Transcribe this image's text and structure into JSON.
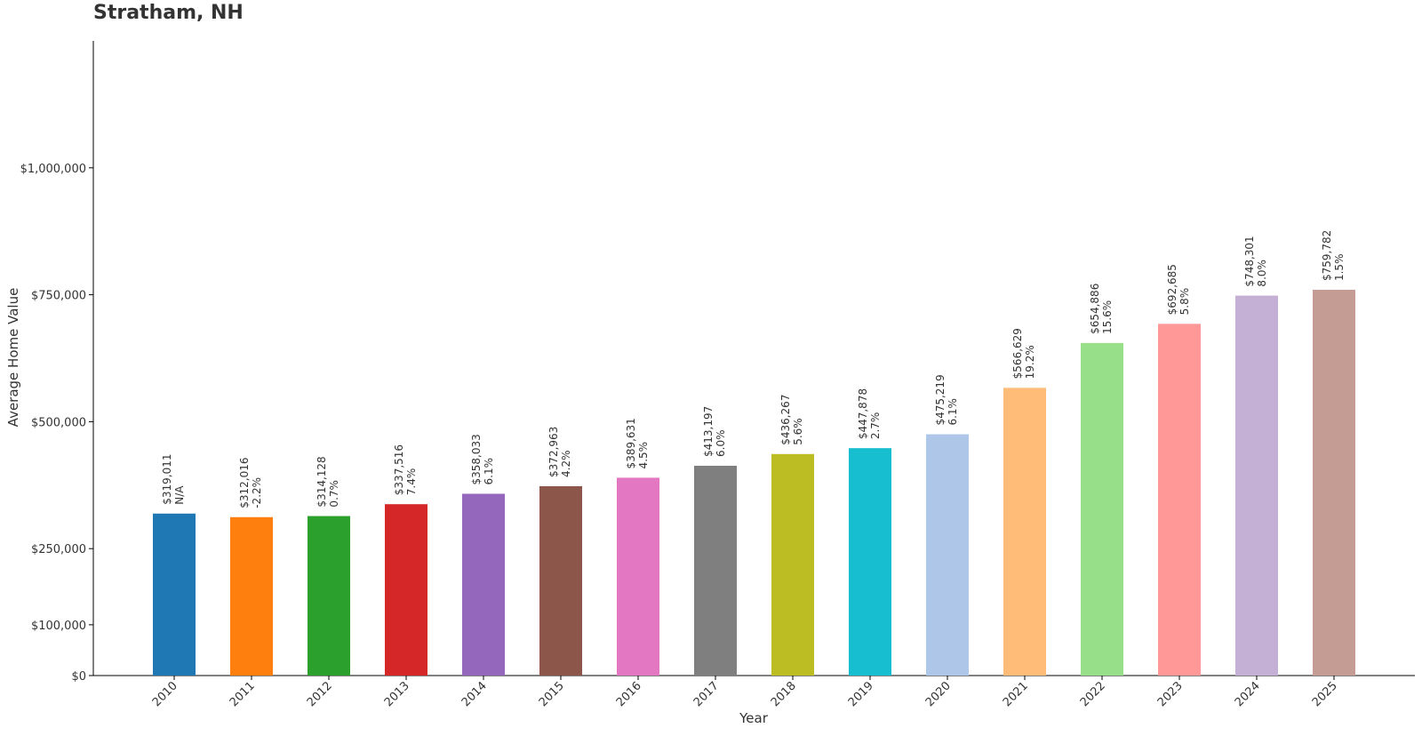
{
  "chart_data": {
    "type": "bar",
    "title": "Stratham, NH",
    "xlabel": "Year",
    "ylabel": "Average Home Value",
    "ylim": [
      0,
      1250000
    ],
    "y_ticks": [
      0,
      100000,
      250000,
      500000,
      750000,
      1000000
    ],
    "y_tick_labels": [
      "$0",
      "$100,000",
      "$250,000",
      "$500,000",
      "$750,000",
      "$1,000,000"
    ],
    "grid": false,
    "categories": [
      "2010",
      "2011",
      "2012",
      "2013",
      "2014",
      "2015",
      "2016",
      "2017",
      "2018",
      "2019",
      "2020",
      "2021",
      "2022",
      "2023",
      "2024",
      "2025"
    ],
    "values": [
      319011,
      312016,
      314128,
      337516,
      358033,
      372963,
      389631,
      413197,
      436267,
      447878,
      475219,
      566629,
      654886,
      692685,
      748301,
      759782
    ],
    "value_labels": [
      "$319,011",
      "$312,016",
      "$314,128",
      "$337,516",
      "$358,033",
      "$372,963",
      "$389,631",
      "$413,197",
      "$436,267",
      "$447,878",
      "$475,219",
      "$566,629",
      "$654,886",
      "$692,685",
      "$748,301",
      "$759,782"
    ],
    "change_labels": [
      "N/A",
      "-2.2%",
      "0.7%",
      "7.4%",
      "6.1%",
      "4.2%",
      "4.5%",
      "6.0%",
      "5.6%",
      "2.7%",
      "6.1%",
      "19.2%",
      "15.6%",
      "5.8%",
      "8.0%",
      "1.5%"
    ],
    "colors": [
      "#1f77b4",
      "#ff7f0e",
      "#2ca02c",
      "#d62728",
      "#9467bd",
      "#8c564b",
      "#e377c2",
      "#7f7f7f",
      "#bcbd22",
      "#17becf",
      "#aec7e8",
      "#ffbb78",
      "#98df8a",
      "#ff9896",
      "#c5b0d5",
      "#c49c94"
    ]
  }
}
